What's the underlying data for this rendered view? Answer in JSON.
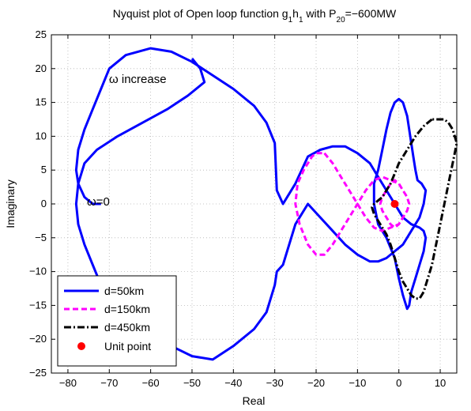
{
  "chart_data": {
    "type": "line",
    "title_main": "Nyquist plot of Open loop function g",
    "title_sub1": "1",
    "title_mid": "h",
    "title_sub2": "1",
    "title_with": " with P",
    "title_sub3": "20",
    "title_end": "=−600MW",
    "xlabel": "Real",
    "ylabel": "Imaginary",
    "xlim": [
      -84,
      14
    ],
    "ylim": [
      -25,
      25
    ],
    "xticks": [
      -80,
      -70,
      -60,
      -50,
      -40,
      -30,
      -20,
      -10,
      0,
      10
    ],
    "yticks": [
      25,
      20,
      15,
      10,
      5,
      0,
      -5,
      -10,
      -15,
      -20,
      -25
    ],
    "grid": true,
    "legend_position": "lower-left",
    "annotations": [
      {
        "text": "ω increase",
        "x": -63,
        "y": 19.5
      },
      {
        "text": "ω=0",
        "x": -74,
        "y": 0.8
      }
    ],
    "series": [
      {
        "name": "d=50km",
        "color": "#0000ff",
        "style": "solid",
        "x": [
          -50,
          -48,
          -47,
          -51,
          -56,
          -62,
          -68,
          -73,
          -76,
          -77.5,
          -78,
          -77.5,
          -76,
          -74,
          -72,
          -70,
          -66,
          -60,
          -55,
          -50,
          -45,
          -40,
          -35,
          -32,
          -30,
          -29.5,
          -28,
          -25,
          -22,
          -19,
          -16,
          -13,
          -10,
          -7,
          -5,
          -3,
          -1,
          1,
          3,
          5,
          6,
          6.5,
          5.5,
          4.5,
          4,
          3.5,
          3,
          2.5,
          2,
          1,
          0,
          -1,
          -2,
          -3,
          -4,
          -5,
          -6,
          -6,
          -5,
          -3,
          -1,
          0,
          1,
          2,
          2.5,
          3,
          4,
          5,
          6,
          6.5,
          6,
          5,
          3,
          1,
          -1,
          -3,
          -5,
          -7,
          -10,
          -13,
          -16,
          -19,
          -22,
          -25,
          -28,
          -29.5,
          -30,
          -32,
          -35,
          -40,
          -45,
          -50,
          -55,
          -60,
          -66,
          -70,
          -72,
          -74,
          -76,
          -77.5,
          -78,
          -77.5,
          -76,
          -74,
          -72
        ],
        "y": [
          21.5,
          20,
          18,
          16,
          14,
          12,
          10,
          8,
          6,
          3,
          0,
          -3,
          -6,
          -9,
          -12,
          -14,
          -16.5,
          -19,
          -21,
          -22.5,
          -23,
          -21,
          -18.5,
          -16,
          -12,
          -10,
          -9,
          -3,
          0,
          -2,
          -4,
          -6,
          -7.5,
          -8.5,
          -8.5,
          -8,
          -7,
          -6,
          -4,
          -2,
          0,
          2,
          3,
          3.5,
          5,
          7,
          9,
          11,
          13,
          15,
          15.5,
          15,
          13.5,
          11,
          8,
          5,
          3,
          0,
          -3,
          -5,
          -8,
          -11,
          -13.5,
          -15.5,
          -15,
          -13,
          -11,
          -9,
          -7,
          -5,
          -4,
          -3.5,
          -3,
          -2,
          0,
          2,
          4,
          6,
          7.5,
          8.5,
          8.5,
          8,
          7,
          3,
          0,
          2,
          9,
          12,
          14.5,
          17,
          19,
          21,
          22.5,
          23,
          22,
          20,
          17,
          14,
          11,
          8,
          5,
          3,
          1,
          0,
          0
        ],
        "x_unused": []
      },
      {
        "name": "d=150km",
        "color": "#ff00ff",
        "style": "dashed",
        "x": [
          -18,
          -16,
          -14,
          -12,
          -10,
          -8,
          -6,
          -4,
          -2,
          0,
          1,
          2,
          2.5,
          2,
          1,
          0,
          -1,
          -2,
          -3,
          -4,
          -4.5,
          -4,
          -3,
          -2,
          -1,
          0,
          1,
          2,
          2.5,
          2,
          1,
          0,
          -2,
          -4,
          -6,
          -8,
          -10,
          -12,
          -14,
          -16,
          -18,
          -20,
          -22,
          -24,
          -25,
          -24.5,
          -23,
          -21,
          -20,
          -18
        ],
        "y": [
          7.5,
          6,
          4,
          2,
          0,
          -2,
          -3.5,
          -4,
          -3.5,
          -3,
          -2,
          -1,
          0,
          1,
          2,
          3,
          3.5,
          3,
          2,
          1,
          0,
          -1,
          -2,
          -3,
          -3.5,
          -3,
          -2,
          -1,
          0,
          1,
          2,
          3,
          3.5,
          4,
          3.5,
          2,
          0,
          -2,
          -4,
          -6,
          -7.5,
          -7.5,
          -6,
          -3,
          0,
          3,
          5,
          7,
          7.5,
          7.5
        ],
        "x_unused": []
      },
      {
        "name": "d=450km",
        "color": "#000000",
        "style": "dashdot",
        "x": [
          8,
          6,
          4,
          2,
          0,
          -1,
          -2,
          -3,
          -4,
          -5,
          -6,
          -6.5,
          -6,
          -5,
          -4,
          -3,
          -2,
          -1,
          0,
          1,
          2,
          3,
          4,
          5,
          6,
          7,
          8,
          9,
          10,
          11,
          12,
          13,
          14,
          13,
          12,
          11,
          10,
          9,
          8
        ],
        "y": [
          12.5,
          11.5,
          10,
          8,
          6,
          4.5,
          3,
          2,
          1,
          0.5,
          0,
          -0.5,
          -1.5,
          -2.5,
          -3.5,
          -4.5,
          -6,
          -8,
          -10,
          -11.5,
          -12.5,
          -13.5,
          -14,
          -14,
          -13,
          -11,
          -9,
          -6,
          -3,
          0,
          3,
          6,
          9,
          11,
          12,
          12.5,
          12.5,
          12.5,
          12.5
        ],
        "x_unused": []
      }
    ],
    "unit_point": {
      "name": "Unit point",
      "x": -1,
      "y": 0,
      "color": "#ff0000"
    }
  }
}
